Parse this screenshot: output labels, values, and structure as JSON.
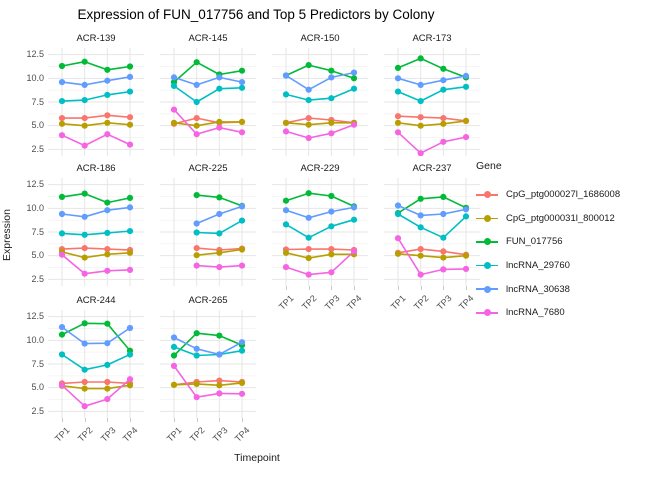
{
  "chart_data": {
    "type": "line",
    "title": "Expression of FUN_017756 and Top 5 Predictors by Colony",
    "xlabel": "Timepoint",
    "ylabel": "Expression",
    "legend_title": "Gene",
    "legend_position": "right",
    "grid": true,
    "x_categories": [
      "TP1",
      "TP2",
      "TP3",
      "TP4"
    ],
    "y_ticks": [
      2.5,
      5.0,
      7.5,
      10.0,
      12.5
    ],
    "y_minor_ticks": [
      3.75,
      6.25,
      8.75,
      11.25
    ],
    "ylim": [
      1.8,
      13.2
    ],
    "facet_columns": 4,
    "series": [
      {
        "name": "CpG_ptg000027l_1686008",
        "color": "#F8766D"
      },
      {
        "name": "CpG_ptg000031l_800012",
        "color": "#B79F00"
      },
      {
        "name": "FUN_017756",
        "color": "#00BA38"
      },
      {
        "name": "lncRNA_29760",
        "color": "#00BFC4"
      },
      {
        "name": "lncRNA_30638",
        "color": "#619CFF"
      },
      {
        "name": "lncRNA_7680",
        "color": "#F564E2"
      }
    ],
    "facets": [
      {
        "label": "ACR-139",
        "values": {
          "CpG_ptg000027l_1686008": [
            5.8,
            5.8,
            6.1,
            5.9
          ],
          "CpG_ptg000031l_800012": [
            5.2,
            5.0,
            5.3,
            5.1
          ],
          "FUN_017756": [
            11.3,
            11.75,
            10.9,
            11.25
          ],
          "lncRNA_29760": [
            7.6,
            7.7,
            8.25,
            8.6
          ],
          "lncRNA_30638": [
            9.6,
            9.3,
            9.75,
            10.15
          ],
          "lncRNA_7680": [
            4.0,
            2.9,
            4.1,
            3.0
          ]
        }
      },
      {
        "label": "ACR-145",
        "values": {
          "CpG_ptg000027l_1686008": [
            5.2,
            5.8,
            5.3,
            5.4
          ],
          "CpG_ptg000031l_800012": [
            5.3,
            5.0,
            5.4,
            5.4
          ],
          "FUN_017756": [
            9.6,
            11.7,
            10.4,
            10.8
          ],
          "lncRNA_29760": [
            9.2,
            7.5,
            8.9,
            9.0
          ],
          "lncRNA_30638": [
            10.1,
            9.3,
            10.1,
            9.6
          ],
          "lncRNA_7680": [
            6.7,
            4.1,
            4.8,
            4.3
          ]
        }
      },
      {
        "label": "ACR-150",
        "values": {
          "CpG_ptg000027l_1686008": [
            5.3,
            5.8,
            5.6,
            5.3
          ],
          "CpG_ptg000031l_800012": [
            5.3,
            5.1,
            5.3,
            5.3
          ],
          "FUN_017756": [
            10.3,
            11.4,
            10.8,
            10.0
          ],
          "lncRNA_29760": [
            8.3,
            7.7,
            7.9,
            8.9
          ],
          "lncRNA_30638": [
            10.3,
            8.8,
            10.1,
            10.6
          ],
          "lncRNA_7680": [
            4.4,
            3.7,
            4.2,
            5.1
          ]
        }
      },
      {
        "label": "ACR-173",
        "values": {
          "CpG_ptg000027l_1686008": [
            6.0,
            5.9,
            5.8,
            5.5
          ],
          "CpG_ptg000031l_800012": [
            5.3,
            5.0,
            5.2,
            5.5
          ],
          "FUN_017756": [
            11.1,
            12.1,
            11.0,
            10.1
          ],
          "lncRNA_29760": [
            8.6,
            7.6,
            8.8,
            9.1
          ],
          "lncRNA_30638": [
            10.0,
            9.3,
            9.8,
            10.25
          ],
          "lncRNA_7680": [
            4.3,
            2.1,
            3.3,
            3.8
          ]
        }
      },
      {
        "label": "ACR-186",
        "values": {
          "CpG_ptg000027l_1686008": [
            5.7,
            5.8,
            5.7,
            5.6
          ],
          "CpG_ptg000031l_800012": [
            5.4,
            4.8,
            5.15,
            5.3
          ],
          "FUN_017756": [
            11.2,
            11.55,
            10.6,
            11.1
          ],
          "lncRNA_29760": [
            7.35,
            7.2,
            7.4,
            7.6
          ],
          "lncRNA_30638": [
            9.4,
            9.1,
            9.8,
            10.1
          ],
          "lncRNA_7680": [
            5.1,
            3.1,
            3.4,
            3.5
          ]
        }
      },
      {
        "label": "ACR-225",
        "values": {
          "CpG_ptg000027l_1686008": [
            null,
            5.8,
            5.6,
            5.75
          ],
          "CpG_ptg000031l_800012": [
            null,
            5.05,
            5.3,
            5.65
          ],
          "FUN_017756": [
            null,
            11.4,
            11.15,
            10.25
          ],
          "lncRNA_29760": [
            null,
            7.45,
            7.35,
            8.7
          ],
          "lncRNA_30638": [
            null,
            8.4,
            9.4,
            10.2
          ],
          "lncRNA_7680": [
            null,
            3.95,
            3.8,
            3.95
          ]
        }
      },
      {
        "label": "ACR-229",
        "values": {
          "CpG_ptg000027l_1686008": [
            5.65,
            5.7,
            5.7,
            5.6
          ],
          "CpG_ptg000031l_800012": [
            5.3,
            4.75,
            5.15,
            5.15
          ],
          "FUN_017756": [
            10.8,
            11.6,
            11.3,
            10.2
          ],
          "lncRNA_29760": [
            8.3,
            6.9,
            8.1,
            8.8
          ],
          "lncRNA_30638": [
            9.8,
            9.0,
            9.65,
            10.1
          ],
          "lncRNA_7680": [
            3.8,
            3.0,
            3.25,
            5.45
          ]
        }
      },
      {
        "label": "ACR-237",
        "values": {
          "CpG_ptg000027l_1686008": [
            5.3,
            5.7,
            5.45,
            5.1
          ],
          "CpG_ptg000031l_800012": [
            5.2,
            5.0,
            4.8,
            5.0
          ],
          "FUN_017756": [
            9.5,
            11.0,
            11.2,
            10.05
          ],
          "lncRNA_29760": [
            9.4,
            8.0,
            6.9,
            9.15
          ],
          "lncRNA_30638": [
            10.3,
            9.25,
            9.4,
            9.9
          ],
          "lncRNA_7680": [
            6.85,
            3.0,
            3.55,
            3.6
          ]
        }
      },
      {
        "label": "ACR-244",
        "values": {
          "CpG_ptg000027l_1686008": [
            5.45,
            5.6,
            5.6,
            5.45
          ],
          "CpG_ptg000031l_800012": [
            5.2,
            4.9,
            4.9,
            5.25
          ],
          "FUN_017756": [
            10.6,
            11.8,
            11.75,
            8.9
          ],
          "lncRNA_29760": [
            8.5,
            6.9,
            7.4,
            8.5
          ],
          "lncRNA_30638": [
            11.4,
            9.65,
            9.7,
            11.3
          ],
          "lncRNA_7680": [
            5.25,
            3.05,
            3.8,
            5.9
          ]
        }
      },
      {
        "label": "ACR-265",
        "values": {
          "CpG_ptg000027l_1686008": [
            5.3,
            5.6,
            5.75,
            5.6
          ],
          "CpG_ptg000031l_800012": [
            5.3,
            5.4,
            5.25,
            5.5
          ],
          "FUN_017756": [
            8.4,
            10.75,
            10.5,
            9.5
          ],
          "lncRNA_29760": [
            9.3,
            8.4,
            8.5,
            8.9
          ],
          "lncRNA_30638": [
            10.3,
            9.1,
            8.5,
            9.8
          ],
          "lncRNA_7680": [
            7.3,
            4.0,
            4.4,
            4.35
          ]
        }
      }
    ],
    "style": {
      "grid_major_color": "#e6e6e6",
      "grid_minor_color": "#f2f2f2",
      "tick_label_color": "#4d4d4d",
      "text_color": "#1a1a1a"
    }
  }
}
